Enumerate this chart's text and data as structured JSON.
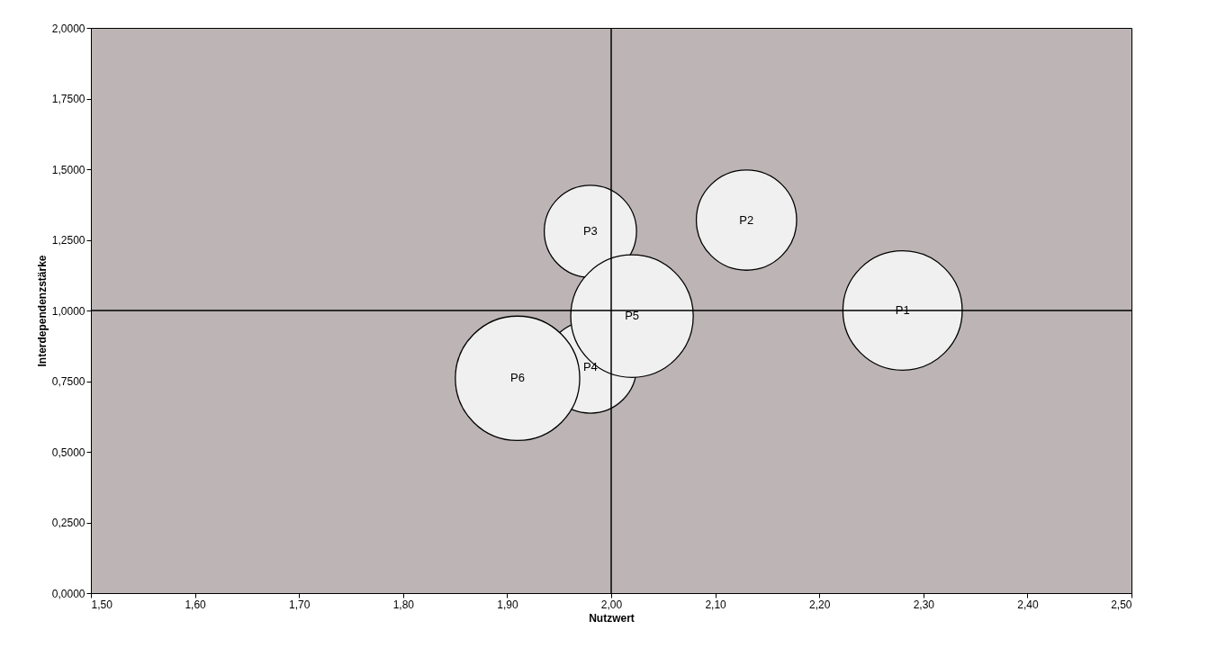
{
  "chart_data": {
    "type": "bubble",
    "xlabel": "Nutzwert",
    "ylabel": "Interdependenzstärke",
    "xlim": [
      1.5,
      2.5
    ],
    "ylim": [
      0,
      2
    ],
    "xticks": [
      {
        "value": 1.5,
        "label": "1,50"
      },
      {
        "value": 1.6,
        "label": "1,60"
      },
      {
        "value": 1.7,
        "label": "1,70"
      },
      {
        "value": 1.8,
        "label": "1,80"
      },
      {
        "value": 1.9,
        "label": "1,90"
      },
      {
        "value": 2.0,
        "label": "2,00"
      },
      {
        "value": 2.1,
        "label": "2,10"
      },
      {
        "value": 2.2,
        "label": "2,20"
      },
      {
        "value": 2.3,
        "label": "2,30"
      },
      {
        "value": 2.4,
        "label": "2,40"
      },
      {
        "value": 2.5,
        "label": "2,50"
      }
    ],
    "yticks": [
      {
        "value": 0,
        "label": "0,0000"
      },
      {
        "value": 0.25,
        "label": "0,2500"
      },
      {
        "value": 0.5,
        "label": "0,5000"
      },
      {
        "value": 0.75,
        "label": "0,7500"
      },
      {
        "value": 1.0,
        "label": "1,0000"
      },
      {
        "value": 1.25,
        "label": "1,2500"
      },
      {
        "value": 1.5,
        "label": "1,5000"
      },
      {
        "value": 1.75,
        "label": "1,7500"
      },
      {
        "value": 2.0,
        "label": "2,0000"
      }
    ],
    "series": [
      {
        "name": "P1",
        "color": "#f0f0f0",
        "x": [
          2.28
        ],
        "values": [
          1.0
        ],
        "sizes": [
          0.92
        ]
      },
      {
        "name": "P2",
        "color": "#f0f0f0",
        "x": [
          2.13
        ],
        "values": [
          1.32
        ],
        "sizes": [
          0.65
        ]
      },
      {
        "name": "P3",
        "color": "#f0f0f0",
        "x": [
          1.98
        ],
        "values": [
          1.28
        ],
        "sizes": [
          0.55
        ]
      },
      {
        "name": "P4",
        "color": "#f0f0f0",
        "x": [
          1.98
        ],
        "values": [
          0.8
        ],
        "sizes": [
          0.55
        ]
      },
      {
        "name": "P5",
        "color": "#f0f0f0",
        "x": [
          2.02
        ],
        "values": [
          0.98
        ],
        "sizes": [
          0.97
        ]
      },
      {
        "name": "P6",
        "color": "#f0f0f0",
        "x": [
          1.91
        ],
        "values": [
          0.76
        ],
        "sizes": [
          1
        ]
      }
    ],
    "ref_lines": [
      {
        "axis": "x",
        "value": 2.0,
        "color": "#000000"
      },
      {
        "axis": "y",
        "value": 1.0,
        "color": "#000000"
      }
    ],
    "grid": false,
    "legend": false
  }
}
